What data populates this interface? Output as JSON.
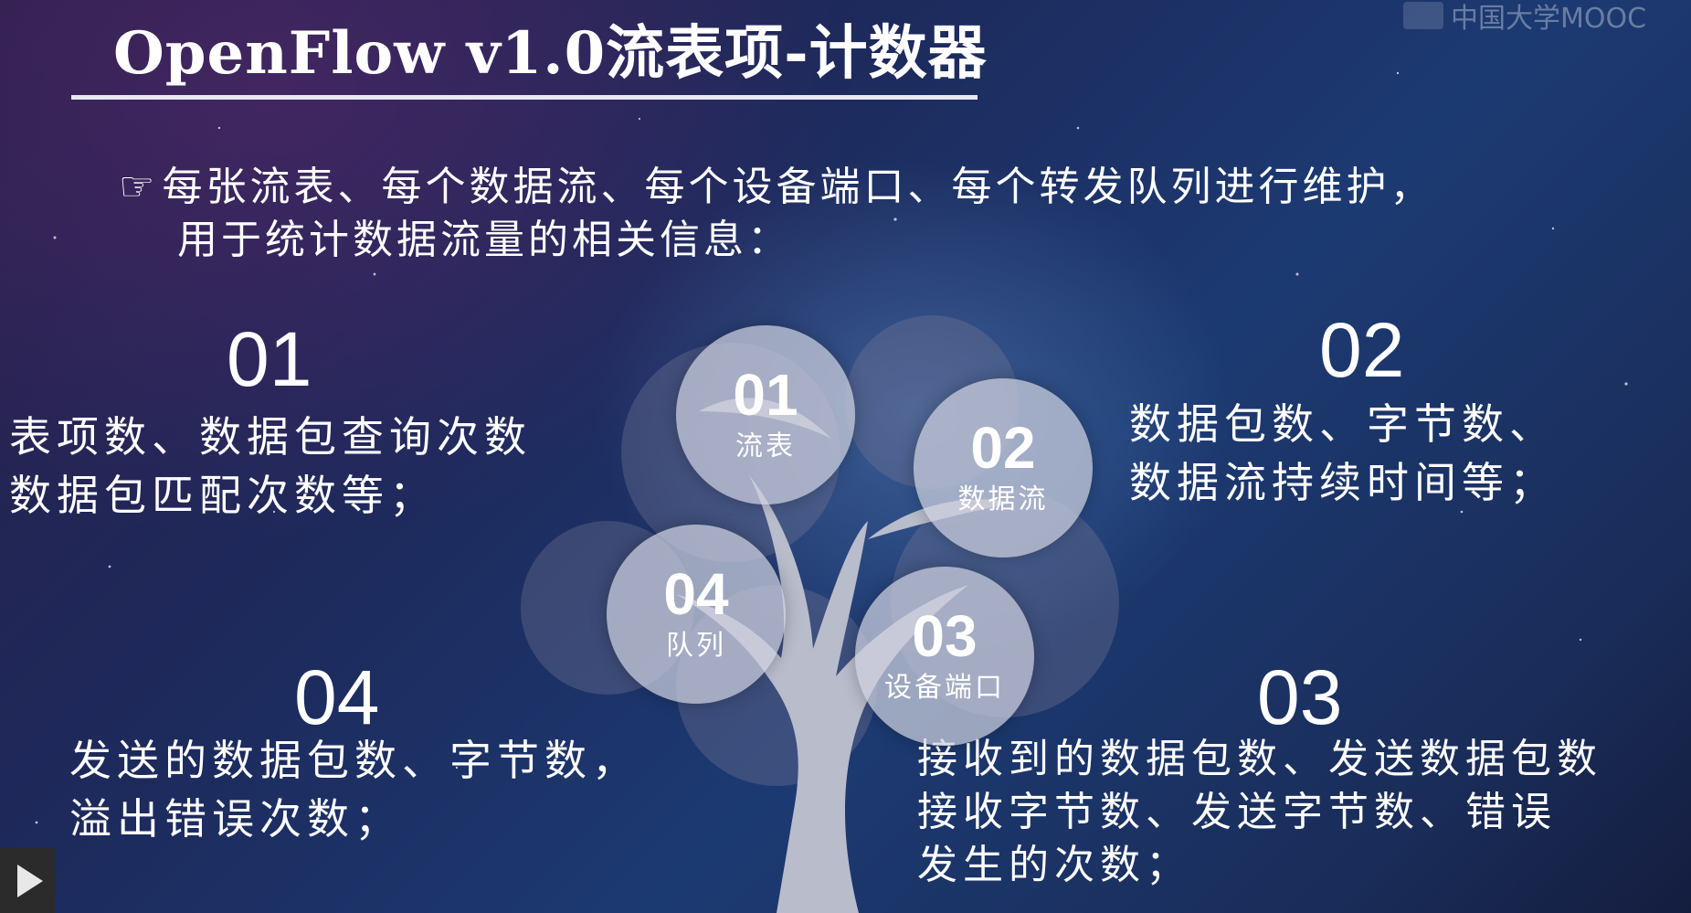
{
  "title": "OpenFlow v1.0流表项-计数器",
  "watermark": {
    "logo_icon": "mooc-logo-icon",
    "text": "中国大学MOOC"
  },
  "intro": {
    "pointer_icon": "☞",
    "line1": "每张流表、每个数据流、每个设备端口、每个转发队列进行维护，",
    "line2": "用于统计数据流量的相关信息："
  },
  "sections": [
    {
      "number": "01",
      "lines": [
        "表项数、数据包查询次数",
        "数据包匹配次数等；"
      ]
    },
    {
      "number": "02",
      "lines": [
        "数据包数、字节数、",
        "数据流持续时间等；"
      ]
    },
    {
      "number": "03",
      "lines": [
        "接收到的数据包数、发送数据包数",
        "接收字节数、发送字节数、错误",
        "发生的次数；"
      ]
    },
    {
      "number": "04",
      "lines": [
        "发送的数据包数、字节数，",
        "溢出错误次数；"
      ]
    }
  ],
  "circles": [
    {
      "number": "01",
      "label": "流表"
    },
    {
      "number": "02",
      "label": "数据流"
    },
    {
      "number": "03",
      "label": "设备端口"
    },
    {
      "number": "04",
      "label": "队列"
    }
  ],
  "player": {
    "play_icon": "play-icon"
  },
  "colors": {
    "text": "#ffffff",
    "circle": "#cdd0de",
    "tree": "#b9bccb",
    "background": "#1d2a5c"
  }
}
